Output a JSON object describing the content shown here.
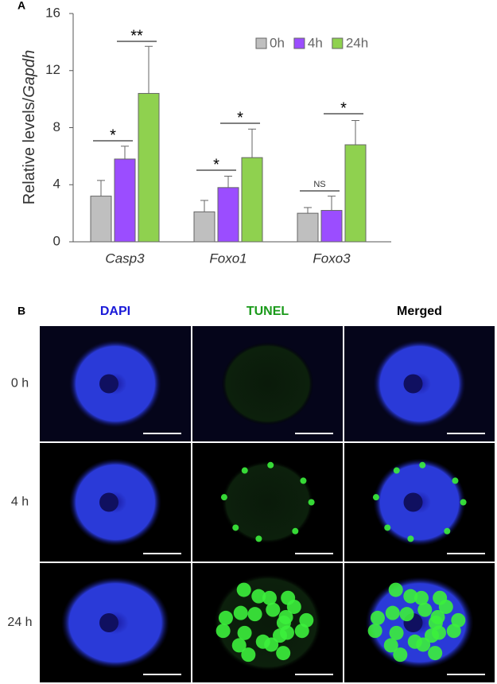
{
  "panels": [
    "A",
    "B"
  ],
  "chart_data": {
    "type": "bar",
    "y_label": [
      "Relative levels/",
      "Gapdh"
    ],
    "categories": [
      "Casp3",
      "Foxo1",
      "Foxo3"
    ],
    "series": [
      {
        "name": "0h",
        "color": "#bfbfbf",
        "values": [
          3.2,
          2.1,
          2.0
        ],
        "errors": [
          1.1,
          0.8,
          0.4
        ]
      },
      {
        "name": "4h",
        "color": "#9b4dff",
        "values": [
          5.8,
          3.8,
          2.2
        ],
        "errors": [
          0.9,
          0.8,
          1.0
        ]
      },
      {
        "name": "24h",
        "color": "#8fd14f",
        "values": [
          10.4,
          5.9,
          6.8
        ],
        "errors": [
          3.3,
          2.0,
          1.7
        ]
      }
    ],
    "annotations": [
      "*",
      "**",
      "*",
      "*",
      "NS",
      "*"
    ],
    "ylim": [
      0,
      16
    ],
    "yticks": [
      0,
      4,
      8,
      12,
      16
    ],
    "legend": "top-right"
  },
  "panel_b": {
    "columns": [
      "DAPI",
      "TUNEL",
      "Merged"
    ],
    "rows": [
      "0 h",
      "4 h",
      "24 h"
    ]
  }
}
